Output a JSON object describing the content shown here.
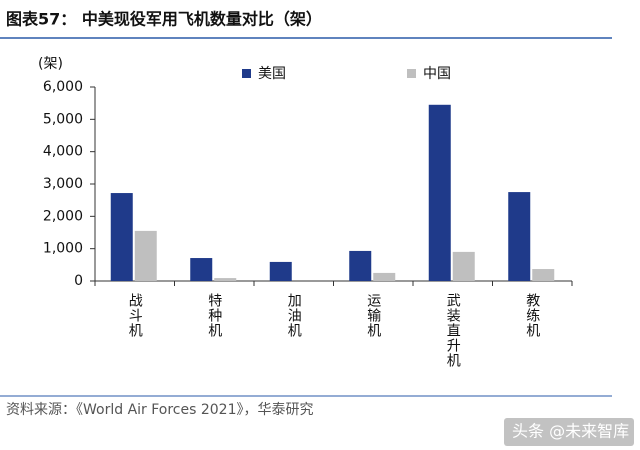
{
  "header": {
    "title": "图表57： 中美现役军用飞机数量对比（架）"
  },
  "chart_data": {
    "type": "bar",
    "unit_label": "(架)",
    "categories": [
      "战斗机",
      "特种机",
      "加油机",
      "运输机",
      "武装直升机",
      "教练机"
    ],
    "series": [
      {
        "name": "美国",
        "color": "#1f3a8a",
        "values": [
          2720,
          710,
          590,
          930,
          5450,
          2750
        ]
      },
      {
        "name": "中国",
        "color": "#bfbfbf",
        "values": [
          1550,
          90,
          0,
          250,
          900,
          370
        ]
      }
    ],
    "ylim": [
      0,
      6000
    ],
    "yticks": [
      0,
      {
        "value": 1000,
        "label": "1,000"
      },
      {
        "value": 2000,
        "label": "2,000"
      },
      {
        "value": 3000,
        "label": "3,000"
      },
      {
        "value": 4000,
        "label": "4,000"
      },
      {
        "value": 5000,
        "label": "5,000"
      },
      {
        "value": 6000,
        "label": "6,000"
      }
    ],
    "legend": "top"
  },
  "footer": {
    "source": "资料来源：《World Air Forces 2021》，华泰研究",
    "watermark": "头条 @未来智库"
  }
}
